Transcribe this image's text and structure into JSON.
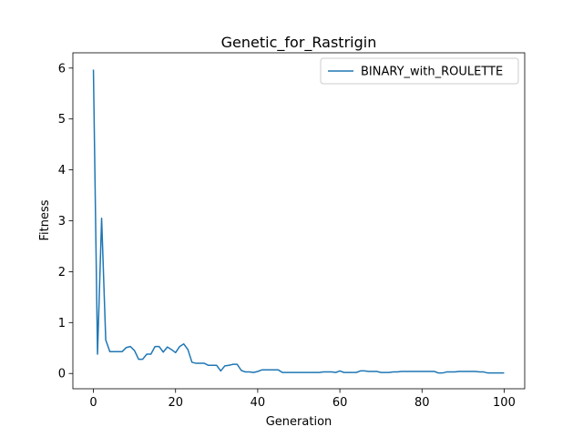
{
  "chart_data": {
    "type": "line",
    "title": "Genetic_for_Rastrigin",
    "xlabel": "Generation",
    "ylabel": "Fitness",
    "xlim": [
      -5,
      105
    ],
    "ylim": [
      -0.3,
      6.3
    ],
    "xticks": [
      0,
      20,
      40,
      60,
      80,
      100
    ],
    "yticks": [
      0,
      1,
      2,
      3,
      4,
      5,
      6
    ],
    "grid": false,
    "legend_position": "top-right",
    "series": [
      {
        "name": "BINARY_with_ROULETTE",
        "color": "#1f77b4",
        "x": [
          0,
          1,
          2,
          3,
          4,
          5,
          6,
          7,
          8,
          9,
          10,
          11,
          12,
          13,
          14,
          15,
          16,
          17,
          18,
          19,
          20,
          21,
          22,
          23,
          24,
          25,
          26,
          27,
          28,
          29,
          30,
          31,
          32,
          33,
          34,
          35,
          36,
          37,
          38,
          39,
          40,
          41,
          42,
          43,
          44,
          45,
          46,
          47,
          48,
          49,
          50,
          51,
          52,
          53,
          54,
          55,
          56,
          57,
          58,
          59,
          60,
          61,
          62,
          63,
          64,
          65,
          66,
          67,
          68,
          69,
          70,
          71,
          72,
          73,
          74,
          75,
          76,
          77,
          78,
          79,
          80,
          81,
          82,
          83,
          84,
          85,
          86,
          87,
          88,
          89,
          90,
          91,
          92,
          93,
          94,
          95,
          96,
          97,
          98,
          99,
          100
        ],
        "y": [
          5.97,
          0.38,
          3.05,
          0.66,
          0.43,
          0.43,
          0.43,
          0.43,
          0.51,
          0.53,
          0.45,
          0.28,
          0.28,
          0.38,
          0.38,
          0.53,
          0.53,
          0.42,
          0.52,
          0.47,
          0.41,
          0.53,
          0.58,
          0.47,
          0.22,
          0.2,
          0.2,
          0.2,
          0.16,
          0.16,
          0.16,
          0.05,
          0.15,
          0.16,
          0.18,
          0.18,
          0.06,
          0.03,
          0.03,
          0.02,
          0.04,
          0.07,
          0.07,
          0.07,
          0.07,
          0.07,
          0.02,
          0.02,
          0.02,
          0.02,
          0.02,
          0.02,
          0.02,
          0.02,
          0.02,
          0.02,
          0.03,
          0.03,
          0.03,
          0.02,
          0.05,
          0.02,
          0.02,
          0.02,
          0.02,
          0.05,
          0.05,
          0.04,
          0.04,
          0.04,
          0.02,
          0.02,
          0.02,
          0.03,
          0.03,
          0.04,
          0.04,
          0.04,
          0.04,
          0.04,
          0.04,
          0.04,
          0.04,
          0.04,
          0.01,
          0.01,
          0.03,
          0.03,
          0.03,
          0.04,
          0.04,
          0.04,
          0.04,
          0.04,
          0.03,
          0.03,
          0.01,
          0.01,
          0.01,
          0.01,
          0.01
        ]
      }
    ]
  }
}
